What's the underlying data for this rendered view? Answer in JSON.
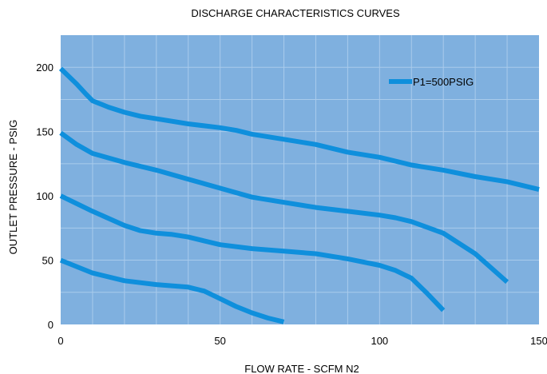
{
  "chart_data": {
    "type": "line",
    "title": "DISCHARGE CHARACTERISTICS CURVES",
    "xlabel": "FLOW RATE - SCFM N2",
    "ylabel": "OUTLET PRESSURE - PSIG",
    "xlim": [
      0,
      150
    ],
    "ylim": [
      0,
      225
    ],
    "x_ticks": [
      0,
      50,
      100,
      150
    ],
    "y_ticks": [
      0,
      50,
      100,
      150,
      200
    ],
    "x_tick_labels": [
      "0",
      "50",
      "100",
      "150"
    ],
    "y_tick_labels": [
      "0",
      "50",
      "100",
      "150",
      "200"
    ],
    "grid": true,
    "legend_position": "top-right",
    "legend": [
      "P1=500PSIG"
    ],
    "colors": {
      "plot_background": "#7fb0df",
      "grid": "#a9cbec",
      "line": "#0f8fdc",
      "text": "#000000"
    },
    "series": [
      {
        "legend_label": "P1=500PSIG",
        "x": [
          0,
          5,
          8,
          10,
          12,
          15,
          20,
          25,
          30,
          40,
          50,
          55,
          60,
          70,
          80,
          90,
          100,
          110,
          120,
          130,
          140,
          150
        ],
        "y": [
          199,
          187,
          179,
          174,
          172,
          169,
          165,
          162,
          160,
          156,
          153,
          151,
          148,
          144,
          140,
          134,
          130,
          124,
          120,
          115,
          111,
          105
        ]
      },
      {
        "x": [
          0,
          5,
          10,
          20,
          30,
          40,
          50,
          60,
          70,
          80,
          90,
          100,
          105,
          110,
          120,
          130,
          140
        ],
        "y": [
          149,
          140,
          133,
          126,
          120,
          113,
          106,
          99,
          95,
          91,
          88,
          85,
          83,
          80,
          71,
          55,
          33
        ]
      },
      {
        "x": [
          0,
          10,
          20,
          25,
          30,
          35,
          40,
          45,
          50,
          60,
          70,
          80,
          90,
          100,
          105,
          110,
          115,
          120
        ],
        "y": [
          100,
          88,
          77,
          73,
          71,
          70,
          68,
          65,
          62,
          59,
          57,
          55,
          51,
          46,
          42,
          36,
          24,
          11
        ]
      },
      {
        "x": [
          0,
          10,
          20,
          30,
          40,
          45,
          50,
          55,
          60,
          65,
          70
        ],
        "y": [
          50,
          40,
          34,
          31,
          29,
          26,
          20,
          14,
          9,
          5,
          2
        ]
      }
    ]
  }
}
